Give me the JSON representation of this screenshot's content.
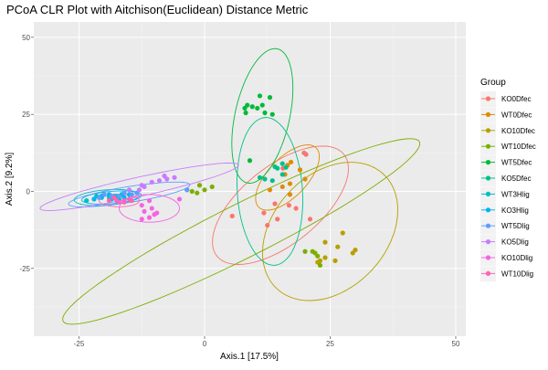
{
  "chart_data": {
    "type": "scatter",
    "title": "PCoA CLR Plot with Aitchison(Euclidean) Distance Metric",
    "xlabel": "Axis.1   [17.5%]",
    "ylabel": "Axis.2   [9.2%]",
    "xlim": [
      -34,
      52
    ],
    "ylim": [
      -47,
      55
    ],
    "xticks": [
      -25,
      0,
      25,
      50
    ],
    "yticks": [
      -25,
      0,
      25,
      50
    ],
    "grid": true,
    "legend_position": "right",
    "legend_title": "Group",
    "series": [
      {
        "name": "KO0Dfec",
        "color": "#F8766D",
        "points": [
          [
            19.8,
            12.5
          ],
          [
            20.2,
            12.0
          ],
          [
            15.6,
            7.5
          ],
          [
            14.0,
            -4.0
          ],
          [
            11.8,
            -7.0
          ],
          [
            14.5,
            -9.0
          ],
          [
            16.8,
            -4.5
          ],
          [
            18.2,
            -5.5
          ],
          [
            21.0,
            -9.0
          ],
          [
            12.5,
            -11.0
          ],
          [
            5.5,
            -8.0
          ]
        ],
        "ellipse": {
          "cx": 15.1,
          "cy": -4.5,
          "rx": 21.5,
          "ry": 9.5,
          "angle": 60
        }
      },
      {
        "name": "WT0Dfec",
        "color": "#DE8C00",
        "points": [
          [
            17.2,
            9.5
          ],
          [
            16.5,
            8.5
          ],
          [
            19.0,
            7.0
          ],
          [
            16.0,
            5.5
          ],
          [
            17.0,
            2.5
          ],
          [
            15.5,
            1.5
          ],
          [
            13.0,
            0.5
          ],
          [
            17.0,
            -1.0
          ],
          [
            20.0,
            4.0
          ]
        ],
        "ellipse": {
          "cx": 16.5,
          "cy": 4.5,
          "rx": 11.5,
          "ry": 4.5,
          "angle": 65
        }
      },
      {
        "name": "KO10Dfec",
        "color": "#B79F00",
        "points": [
          [
            27.5,
            -13.5
          ],
          [
            30.0,
            -19.0
          ],
          [
            29.5,
            -20.0
          ],
          [
            26.5,
            -18.0
          ],
          [
            24.0,
            -21.5
          ],
          [
            23.0,
            -22.5
          ],
          [
            22.5,
            -23.0
          ],
          [
            26.0,
            -22.5
          ],
          [
            24.0,
            -16.5
          ]
        ],
        "ellipse": {
          "cx": 25.0,
          "cy": -13.0,
          "rx": 23.0,
          "ry": 12.5,
          "angle": 75
        }
      },
      {
        "name": "WT10Dfec",
        "color": "#7CAE00",
        "points": [
          [
            1.5,
            1.5
          ],
          [
            0.0,
            0.5
          ],
          [
            -1.5,
            -0.5
          ],
          [
            -3.5,
            0.5
          ],
          [
            -2.5,
            0.0
          ],
          [
            -1.0,
            2.0
          ],
          [
            22.0,
            -20.0
          ],
          [
            23.0,
            -24.0
          ],
          [
            21.5,
            -19.5
          ],
          [
            22.5,
            -21.0
          ],
          [
            20.0,
            -19.5
          ]
        ],
        "ellipse": {
          "cx": 7.3,
          "cy": -13.0,
          "rx": 46.0,
          "ry": 7.5,
          "angle": 40
        }
      },
      {
        "name": "WT5Dfec",
        "color": "#00BA38",
        "points": [
          [
            8.0,
            27.0
          ],
          [
            8.5,
            28.0
          ],
          [
            9.5,
            27.5
          ],
          [
            10.5,
            27.0
          ],
          [
            11.5,
            28.0
          ],
          [
            11.0,
            31.0
          ],
          [
            13.0,
            30.5
          ],
          [
            12.0,
            25.5
          ],
          [
            13.5,
            25.0
          ],
          [
            8.2,
            25.5
          ],
          [
            9.0,
            10.0
          ]
        ],
        "ellipse": {
          "cx": 11.5,
          "cy": 24.5,
          "rx": 22.0,
          "ry": 5.5,
          "angle": 83
        }
      },
      {
        "name": "KO5Dfec",
        "color": "#00C08B",
        "points": [
          [
            14.0,
            8.0
          ],
          [
            15.5,
            9.0
          ],
          [
            14.5,
            7.5
          ],
          [
            11.0,
            4.5
          ],
          [
            12.0,
            4.0
          ],
          [
            15.5,
            5.5
          ],
          [
            13.5,
            3.5
          ],
          [
            16.2,
            7.8
          ]
        ],
        "ellipse": {
          "cx": 13.0,
          "cy": 0.0,
          "rx": 24.0,
          "ry": 6.5,
          "angle": 92
        }
      },
      {
        "name": "WT3Hlig",
        "color": "#00BFC4",
        "points": [
          [
            -23.5,
            -3.0
          ],
          [
            -21.5,
            -1.5
          ],
          [
            -20.0,
            -1.0
          ],
          [
            -19.0,
            -2.0
          ],
          [
            -18.0,
            -1.5
          ],
          [
            -17.0,
            -2.5
          ],
          [
            -20.5,
            -2.0
          ],
          [
            -16.5,
            -1.0
          ],
          [
            -22.0,
            -2.5
          ]
        ],
        "ellipse": {
          "cx": -19.5,
          "cy": -2.0,
          "rx": 6.5,
          "ry": 2.5,
          "angle": 8
        }
      },
      {
        "name": "KO3Hlig",
        "color": "#00B4F0",
        "points": [
          [
            -22.0,
            -2.5
          ],
          [
            -20.5,
            -1.5
          ],
          [
            -19.0,
            -1.0
          ],
          [
            -17.5,
            -1.5
          ],
          [
            -16.0,
            -2.0
          ],
          [
            -15.0,
            -1.0
          ],
          [
            -18.5,
            -2.5
          ]
        ],
        "ellipse": {
          "cx": -18.5,
          "cy": -2.0,
          "rx": 6.0,
          "ry": 2.0,
          "angle": 8
        }
      },
      {
        "name": "WT5Dlig",
        "color": "#619CFF",
        "points": [
          [
            -20.0,
            -1.0
          ],
          [
            -18.5,
            -1.5
          ],
          [
            -17.0,
            -1.5
          ],
          [
            -16.0,
            -0.5
          ],
          [
            -14.5,
            -1.0
          ],
          [
            -13.5,
            -0.5
          ],
          [
            -3.5,
            0.5
          ],
          [
            -21.0,
            -2.0
          ]
        ],
        "ellipse": {
          "cx": -15.0,
          "cy": -1.0,
          "rx": 12.5,
          "ry": 2.5,
          "angle": 15
        }
      },
      {
        "name": "KO5Dlig",
        "color": "#C77CFF",
        "points": [
          [
            -7.5,
            4.0
          ],
          [
            -8.0,
            5.0
          ],
          [
            -9.0,
            3.5
          ],
          [
            -10.5,
            3.0
          ],
          [
            -12.0,
            1.5
          ],
          [
            -13.0,
            0.5
          ],
          [
            -6.0,
            4.5
          ],
          [
            -12.5,
            2.0
          ],
          [
            -15.0,
            0.5
          ]
        ],
        "ellipse": {
          "cx": -13.0,
          "cy": 1.5,
          "rx": 21.0,
          "ry": 3.0,
          "angle": 20
        }
      },
      {
        "name": "KO10Dlig",
        "color": "#F564E3",
        "points": [
          [
            -12.5,
            -4.5
          ],
          [
            -10.5,
            -5.5
          ],
          [
            -12.0,
            -6.5
          ],
          [
            -10.0,
            -7.5
          ],
          [
            -11.0,
            -8.5
          ],
          [
            -12.5,
            -9.0
          ],
          [
            -9.5,
            -7.0
          ],
          [
            -16.0,
            -3.0
          ],
          [
            -11.0,
            -3.0
          ],
          [
            -5.0,
            -2.5
          ],
          [
            -17.0,
            -3.5
          ]
        ],
        "ellipse": {
          "cx": -11.0,
          "cy": -5.5,
          "rx": 6.0,
          "ry": 4.5,
          "angle": 0
        }
      },
      {
        "name": "WT10Dlig",
        "color": "#FF64B0",
        "points": [
          [
            -15.0,
            -2.5
          ],
          [
            -17.5,
            -3.0
          ],
          [
            -19.0,
            -3.0
          ],
          [
            -16.0,
            -3.5
          ],
          [
            -18.0,
            -2.0
          ],
          [
            -14.5,
            -3.0
          ]
        ],
        "ellipse": {
          "cx": -17.0,
          "cy": -3.0,
          "rx": 4.0,
          "ry": 2.0,
          "angle": 0
        }
      }
    ]
  }
}
